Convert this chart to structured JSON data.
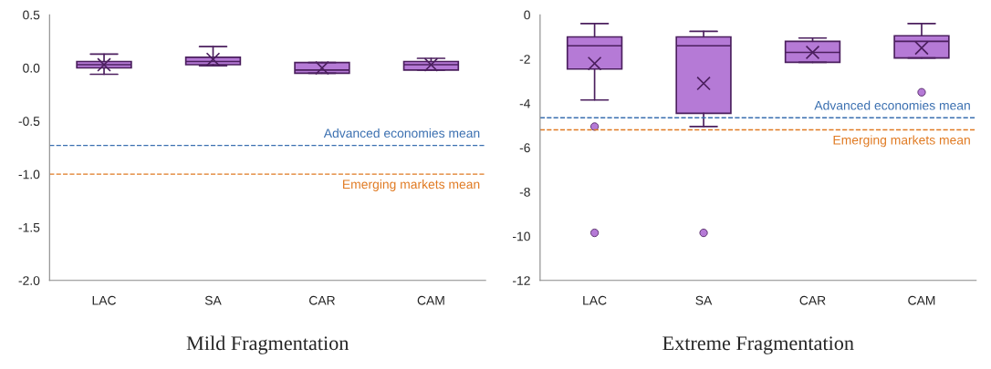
{
  "chart_data": [
    {
      "type": "box",
      "title": "Mild Fragmentation",
      "categories": [
        "LAC",
        "SA",
        "CAR",
        "CAM"
      ],
      "color": "#b57ad6",
      "boxes": [
        {
          "low": -0.06,
          "q1": 0.0,
          "median": 0.03,
          "q3": 0.06,
          "high": 0.13,
          "mean": 0.03
        },
        {
          "low": 0.02,
          "q1": 0.03,
          "median": 0.06,
          "q3": 0.1,
          "high": 0.2,
          "mean": 0.08
        },
        {
          "low": -0.05,
          "q1": -0.05,
          "median": -0.02,
          "q3": 0.05,
          "high": 0.05,
          "mean": 0.0
        },
        {
          "low": -0.02,
          "q1": -0.02,
          "median": 0.03,
          "q3": 0.06,
          "high": 0.09,
          "mean": 0.03
        }
      ],
      "ylim": [
        -2.0,
        0.5
      ],
      "yticks": [
        {
          "value": -2.0,
          "label": "-2.0"
        },
        {
          "value": -1.5,
          "label": "-1.5"
        },
        {
          "value": -1.0,
          "label": "-1.0"
        },
        {
          "value": -0.5,
          "label": "-0.5"
        },
        {
          "value": 0.0,
          "label": "0.0"
        },
        {
          "value": 0.5,
          "label": "0.5"
        }
      ],
      "grid": false,
      "ref_lines": [
        {
          "axis": "y",
          "value": -0.73,
          "label": "Advanced economies mean",
          "color": "#3a6fb0",
          "line_style": "dashed"
        },
        {
          "axis": "y",
          "value": -1.0,
          "label": "Emerging markets mean",
          "color": "#e07a22",
          "line_style": "dashed"
        }
      ]
    },
    {
      "type": "box",
      "title": "Extreme Fragmentation",
      "categories": [
        "LAC",
        "SA",
        "CAR",
        "CAM"
      ],
      "color": "#b57ad6",
      "boxes": [
        {
          "low": -3.85,
          "q1": -2.45,
          "median": -1.4,
          "q3": -1.0,
          "high": -0.4,
          "mean": -2.2,
          "outliers": [
            -5.05,
            -9.85
          ]
        },
        {
          "low": -5.05,
          "q1": -4.45,
          "median": -1.4,
          "q3": -1.0,
          "high": -0.75,
          "mean": -3.1,
          "outliers": [
            -9.85
          ]
        },
        {
          "low": -2.15,
          "q1": -2.15,
          "median": -1.7,
          "q3": -1.2,
          "high": -1.05,
          "mean": -1.7
        },
        {
          "low": -1.95,
          "q1": -1.95,
          "median": -1.2,
          "q3": -0.95,
          "high": -0.4,
          "mean": -1.5,
          "outliers": [
            -3.5
          ]
        }
      ],
      "ylim": [
        -12,
        0
      ],
      "yticks": [
        -12,
        -10,
        -8,
        -6,
        -4,
        -2,
        0
      ],
      "grid": false,
      "ref_lines": [
        {
          "axis": "y",
          "value": -4.65,
          "label": "Advanced economies mean",
          "color": "#3a6fb0",
          "line_style": "dashed"
        },
        {
          "axis": "y",
          "value": -5.2,
          "label": "Emerging markets mean",
          "color": "#e07a22",
          "line_style": "dashed"
        }
      ]
    }
  ]
}
